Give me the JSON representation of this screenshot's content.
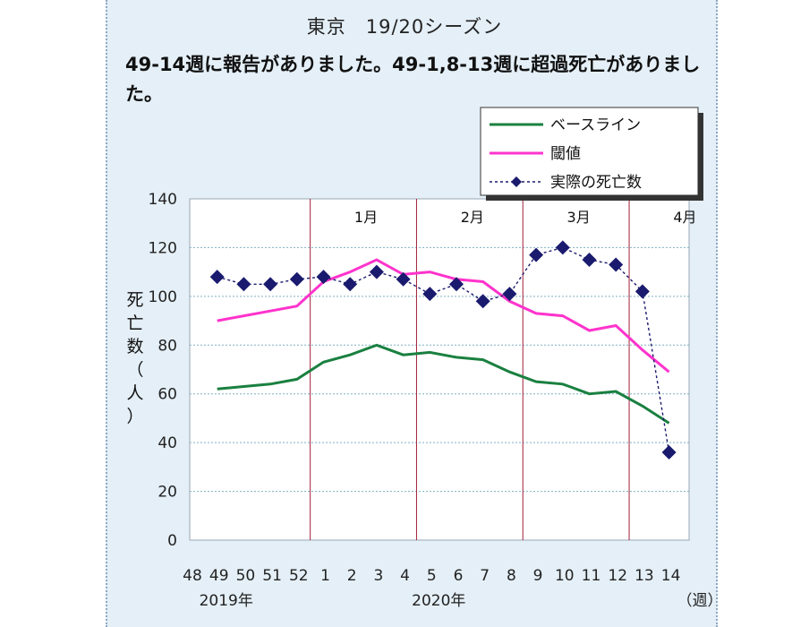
{
  "title": "東京　19/20シーズン",
  "subtitle": "49-14週に報告がありました。49-1,8-13週に超過死亡がありました。",
  "chart_data": {
    "type": "line",
    "x_ticks": [
      "48",
      "49",
      "50",
      "51",
      "52",
      "1",
      "2",
      "3",
      "4",
      "5",
      "6",
      "7",
      "8",
      "9",
      "10",
      "11",
      "12",
      "13",
      "14"
    ],
    "year_labels": [
      {
        "label": "2019年",
        "under_tick": "49"
      },
      {
        "label": "2020年",
        "under_tick": "5"
      }
    ],
    "x_unit": "（週）",
    "ylabel": "死亡数（人）",
    "ylim": [
      0,
      140
    ],
    "yticks": [
      0,
      20,
      40,
      60,
      80,
      100,
      120,
      140
    ],
    "grid": true,
    "month_labels": [
      {
        "label": "1月",
        "after_week": "2"
      },
      {
        "label": "2月",
        "after_week": "6"
      },
      {
        "label": "3月",
        "after_week": "10"
      },
      {
        "label": "4月",
        "after_week": "14"
      }
    ],
    "month_dividers_after_week": [
      "52",
      "4",
      "8",
      "12"
    ],
    "legend_position": "top-right",
    "series": [
      {
        "name": "ベースライン",
        "color": "#1a8040",
        "x": [
          "49",
          "50",
          "51",
          "52",
          "1",
          "2",
          "3",
          "4",
          "5",
          "6",
          "7",
          "8",
          "9",
          "10",
          "11",
          "12",
          "13",
          "14"
        ],
        "values": [
          62,
          63,
          64,
          66,
          73,
          76,
          80,
          76,
          77,
          75,
          74,
          69,
          65,
          64,
          60,
          61,
          55,
          48
        ]
      },
      {
        "name": "閾値",
        "color": "#ff33cc",
        "x": [
          "49",
          "50",
          "51",
          "52",
          "1",
          "2",
          "3",
          "4",
          "5",
          "6",
          "7",
          "8",
          "9",
          "10",
          "11",
          "12",
          "13",
          "14"
        ],
        "values": [
          90,
          92,
          94,
          96,
          106,
          110,
          115,
          109,
          110,
          107,
          106,
          98,
          93,
          92,
          86,
          88,
          78,
          69
        ]
      },
      {
        "name": "実際の死亡数",
        "color": "#1a1a6e",
        "x": [
          "49",
          "50",
          "51",
          "52",
          "1",
          "2",
          "3",
          "4",
          "5",
          "6",
          "7",
          "8",
          "9",
          "10",
          "11",
          "12",
          "13",
          "14"
        ],
        "values": [
          108,
          105,
          105,
          107,
          108,
          105,
          110,
          107,
          101,
          105,
          98,
          101,
          117,
          120,
          115,
          113,
          102,
          36
        ]
      }
    ]
  }
}
